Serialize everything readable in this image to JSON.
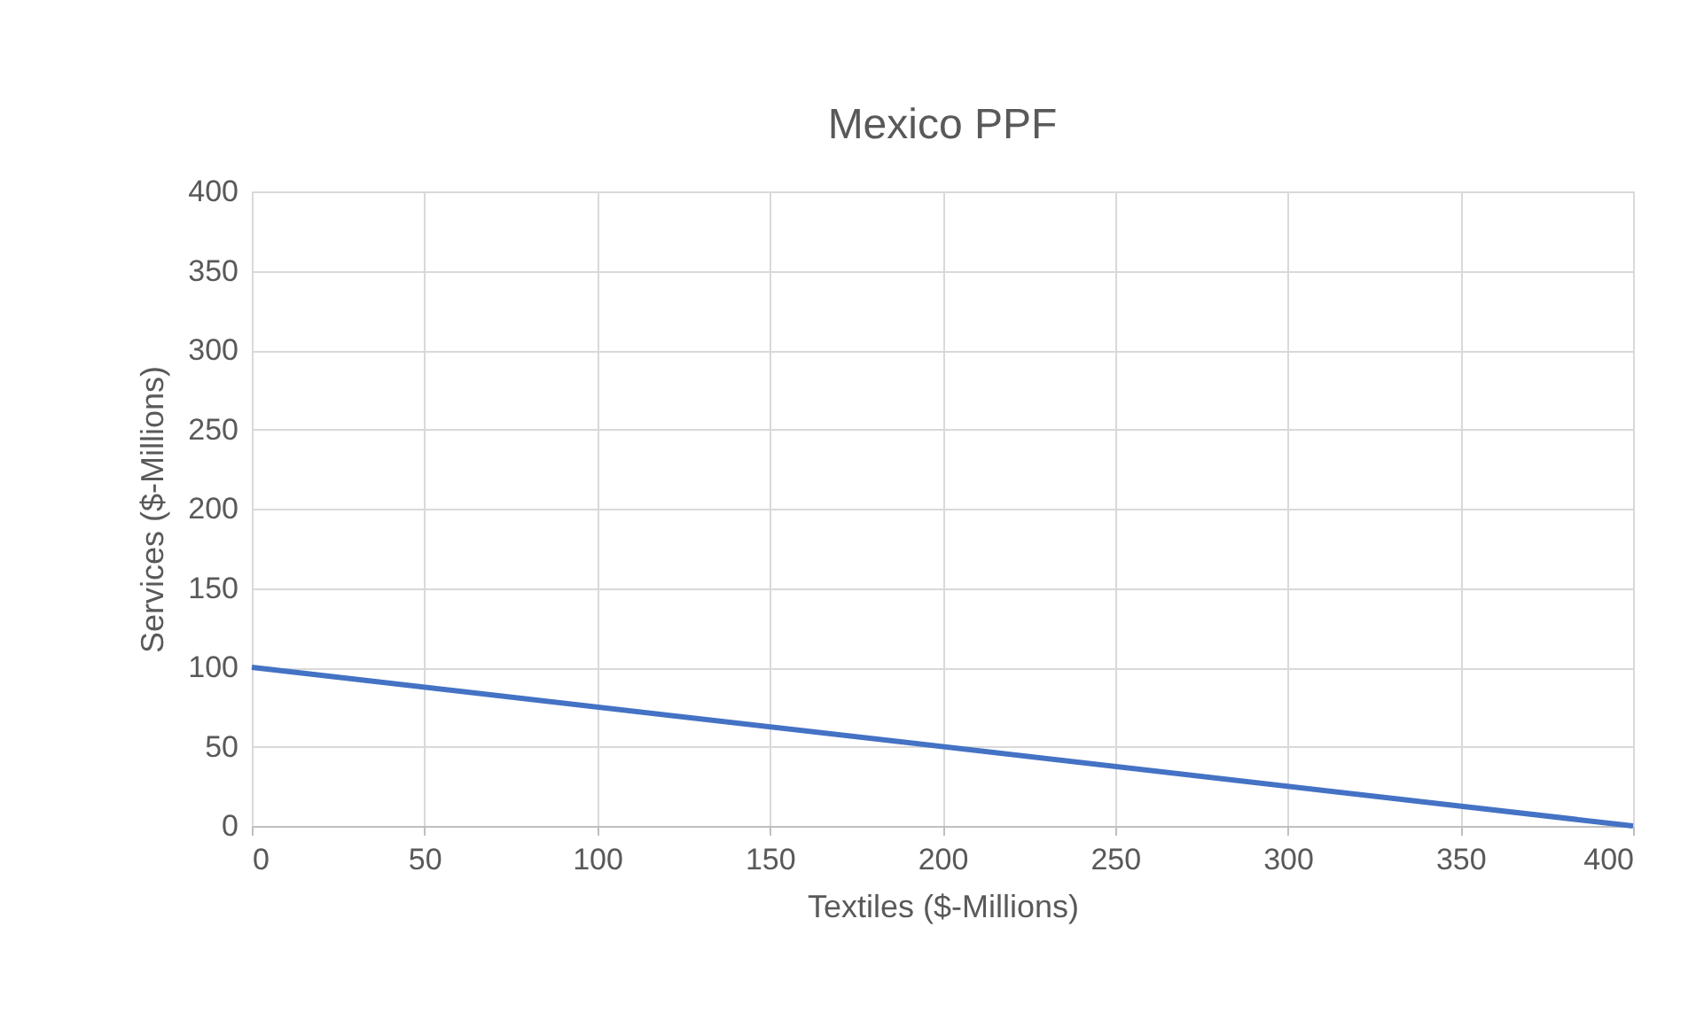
{
  "chart_data": {
    "type": "line",
    "title": "Mexico PPF",
    "xlabel": "Textiles ($-Millions)",
    "ylabel": "Services ($-Millions)",
    "x": [
      0,
      400
    ],
    "series": [
      {
        "color": "#4472c4",
        "values": [
          100,
          0
        ]
      }
    ],
    "xlim": [
      0,
      400
    ],
    "xticks": [
      0,
      50,
      100,
      150,
      200,
      250,
      300,
      350,
      400
    ],
    "ylim": [
      0,
      400
    ],
    "yticks": [
      0,
      50,
      100,
      150,
      200,
      250,
      300,
      350,
      400
    ],
    "grid": true,
    "marker": "none",
    "line_style": "solid"
  }
}
